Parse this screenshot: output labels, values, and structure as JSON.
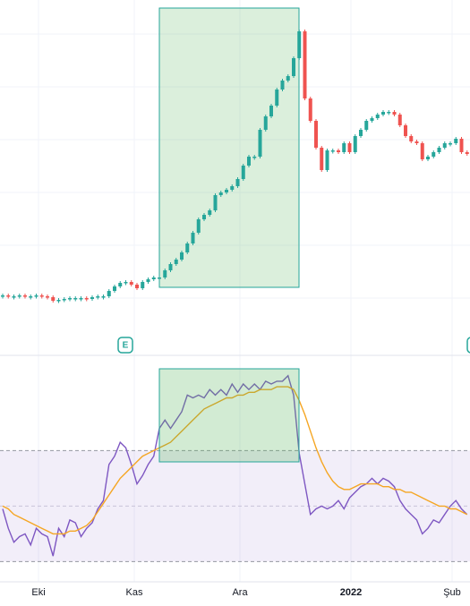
{
  "chart_data": [
    {
      "type": "candlestick",
      "values": [
        60,
        59,
        59,
        60,
        59,
        59,
        60,
        59,
        58,
        54,
        55,
        56,
        57,
        57,
        57,
        56,
        58,
        59,
        59,
        65,
        70,
        74,
        75,
        72,
        68,
        75,
        78,
        80,
        80,
        88,
        95,
        100,
        108,
        118,
        130,
        145,
        150,
        155,
        172,
        175,
        178,
        182,
        190,
        205,
        215,
        215,
        245,
        260,
        272,
        290,
        300,
        305,
        325,
        355,
        280,
        255,
        225,
        200,
        222,
        222,
        220,
        230,
        220,
        238,
        245,
        255,
        258,
        262,
        265,
        265,
        262,
        250,
        238,
        232,
        230,
        212,
        215,
        220,
        225,
        230,
        230,
        235,
        220,
        218
      ],
      "up_color": "#26a69a",
      "down_color": "#ef5350",
      "ylim": [
        0,
        390
      ]
    },
    {
      "type": "line",
      "series": [
        {
          "color": "#7e57c2",
          "values": [
            49,
            42,
            37,
            39,
            40,
            36,
            42,
            40,
            39,
            32,
            42,
            39,
            45,
            44,
            39,
            42,
            44,
            49,
            52,
            65,
            68,
            73,
            71,
            65,
            58,
            61,
            65,
            68,
            78,
            81,
            78,
            81,
            84,
            90,
            89,
            90,
            89,
            92,
            90,
            92,
            90,
            94,
            91,
            94,
            92,
            94,
            92,
            95,
            94,
            95,
            95,
            97,
            90,
            69,
            58,
            47,
            49,
            50,
            49,
            50,
            52,
            49,
            53,
            55,
            57,
            58,
            60,
            58,
            60,
            59,
            57,
            52,
            49,
            47,
            45,
            40,
            42,
            45,
            44,
            47,
            50,
            52,
            49,
            47
          ]
        },
        {
          "color": "#f5a623",
          "values": [
            50,
            49,
            47,
            46,
            45,
            44,
            43,
            42,
            41,
            40,
            40,
            40,
            41,
            41,
            42,
            43,
            45,
            48,
            51,
            54,
            57,
            60,
            62,
            64,
            66,
            68,
            69,
            70,
            71,
            72,
            73,
            75,
            77,
            79,
            81,
            83,
            85,
            86,
            87,
            88,
            89,
            89,
            90,
            90,
            91,
            91,
            92,
            92,
            92,
            93,
            93,
            93,
            92,
            88,
            83,
            77,
            71,
            66,
            62,
            59,
            57,
            56,
            56,
            57,
            58,
            58,
            58,
            58,
            57,
            57,
            56,
            56,
            55,
            55,
            54,
            53,
            52,
            51,
            50,
            50,
            49,
            49,
            48,
            47
          ]
        }
      ],
      "ylim": [
        22,
        104
      ],
      "yticks": [
        30,
        50,
        70
      ]
    }
  ],
  "x_axis_labels": [
    "Eki",
    "Kas",
    "Ara",
    "2022",
    "Şub"
  ],
  "marker": "E"
}
